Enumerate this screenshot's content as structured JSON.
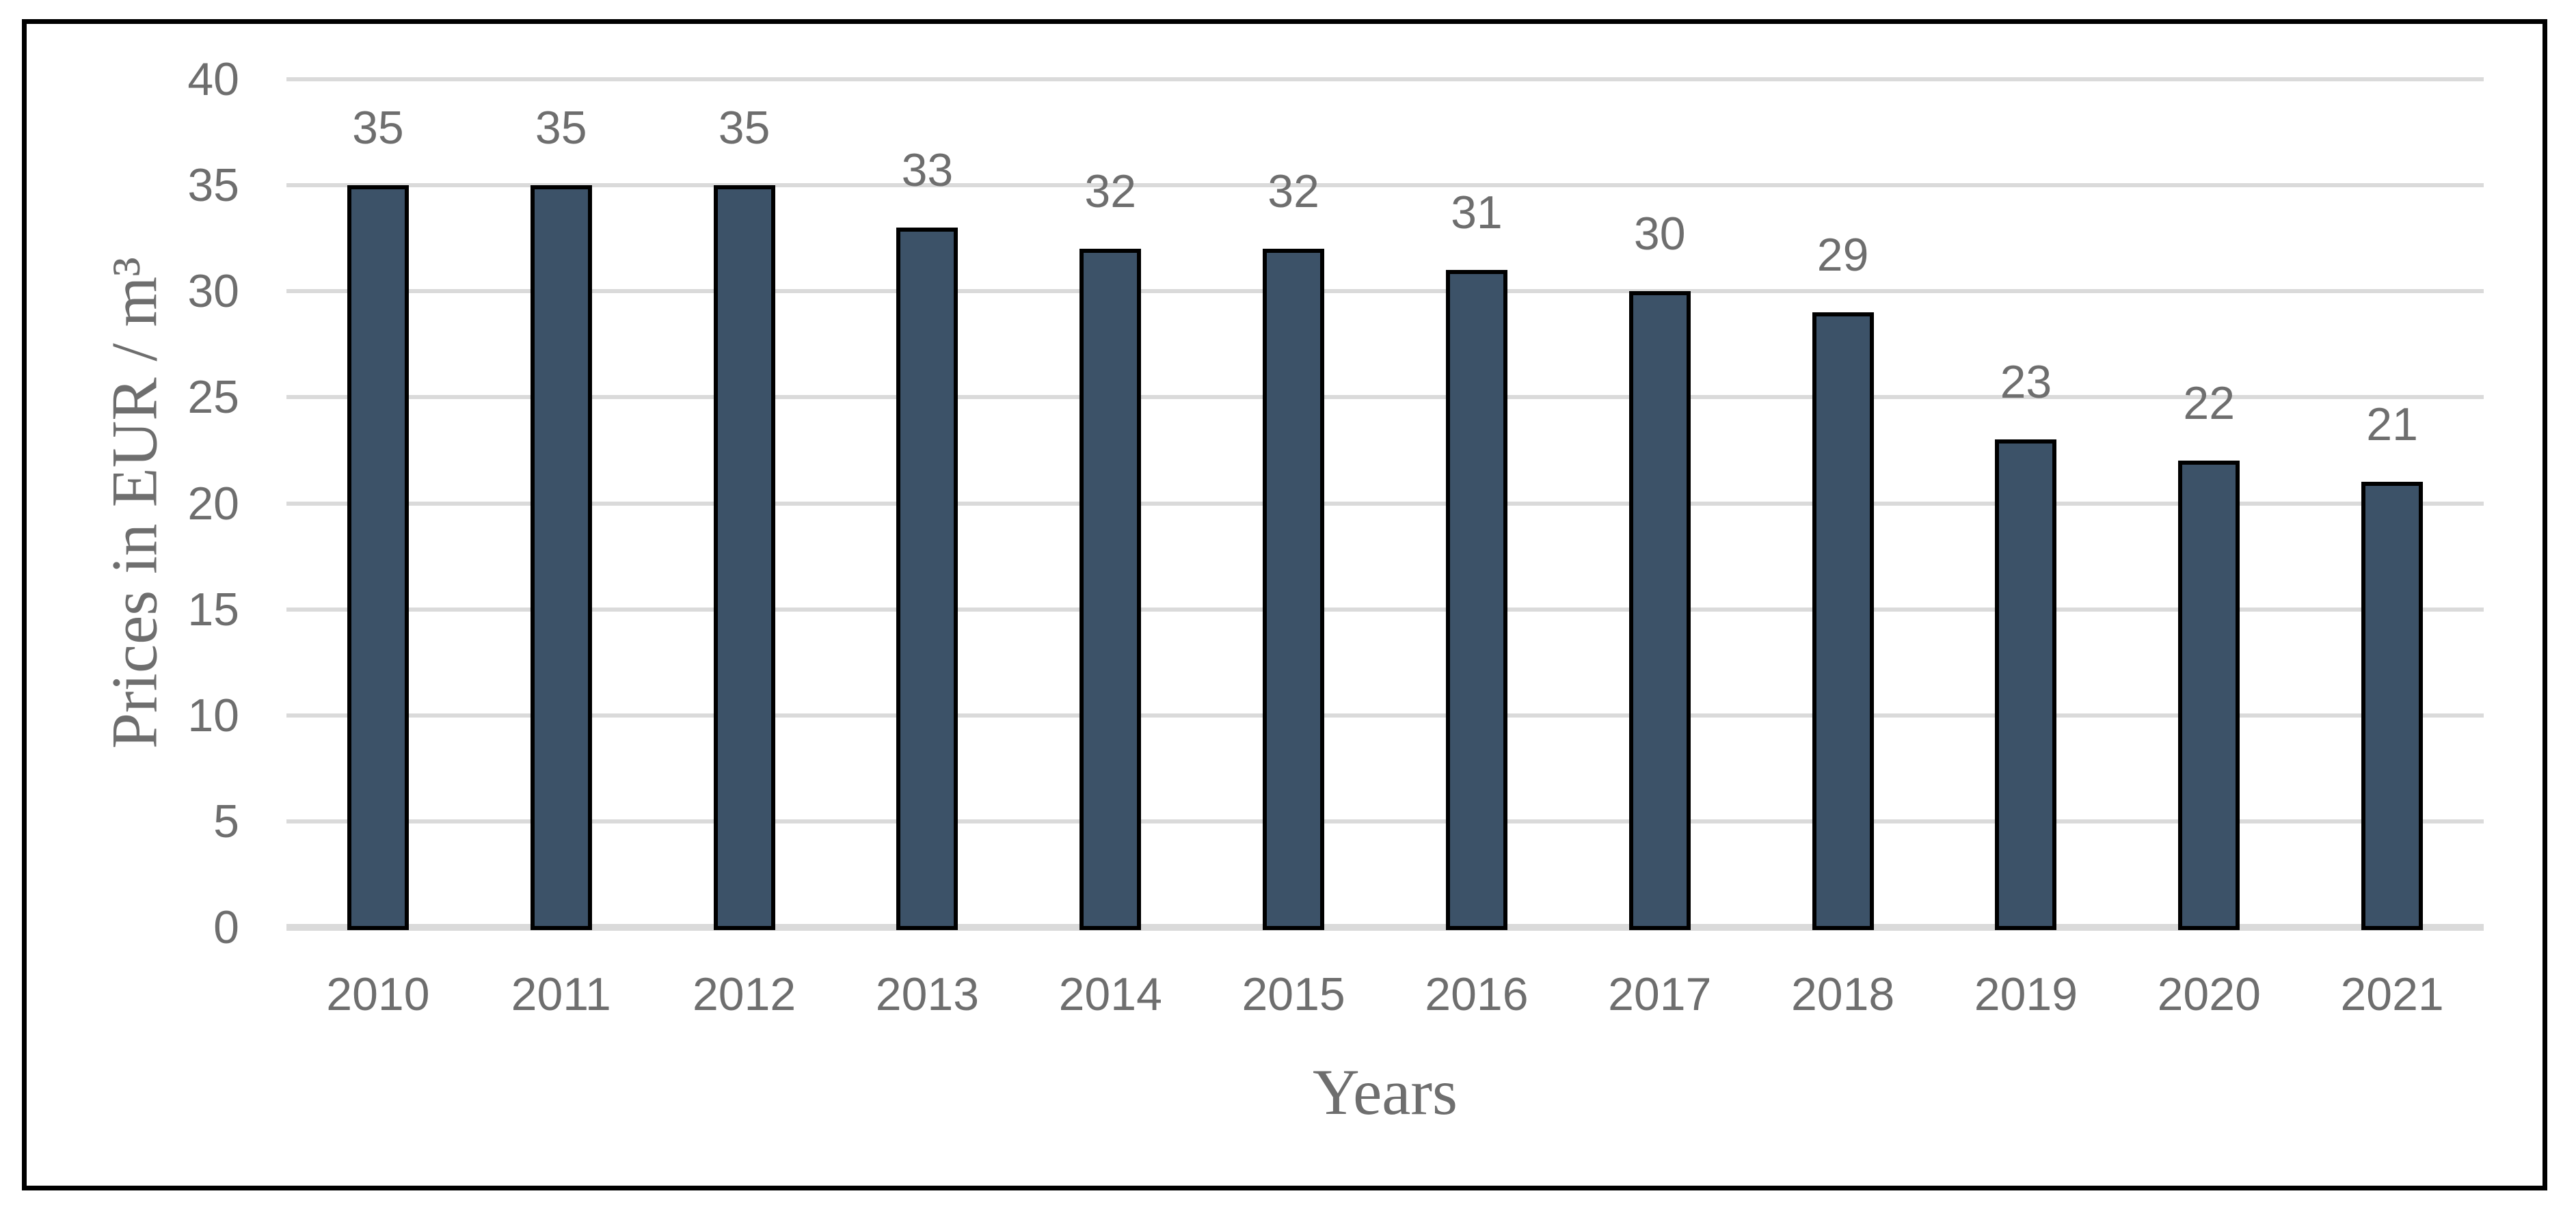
{
  "figure": {
    "background": "#FFFFFF",
    "frame_border_color": "#000000"
  },
  "chart_data": {
    "type": "bar",
    "title": "",
    "xlabel": "Years",
    "ylabel": "Prices in EUR / m³",
    "categories": [
      "2010",
      "2011",
      "2012",
      "2013",
      "2014",
      "2015",
      "2016",
      "2017",
      "2018",
      "2019",
      "2020",
      "2021"
    ],
    "values": [
      35,
      35,
      35,
      33,
      32,
      32,
      31,
      30,
      29,
      23,
      22,
      21
    ],
    "ylim": [
      0,
      40
    ],
    "yticks": [
      0,
      5,
      10,
      15,
      20,
      25,
      30,
      35,
      40
    ],
    "grid": "horizontal",
    "legend": "none",
    "data_labels": "above-bars",
    "colors": {
      "bar_fill": "#3C5268",
      "bar_border": "#000000",
      "gridline": "#DADADA",
      "zero_axis_line": "#DADADA",
      "number_label_text": "#6E6E6E",
      "axis_title_text": "#6E6E6E"
    }
  }
}
